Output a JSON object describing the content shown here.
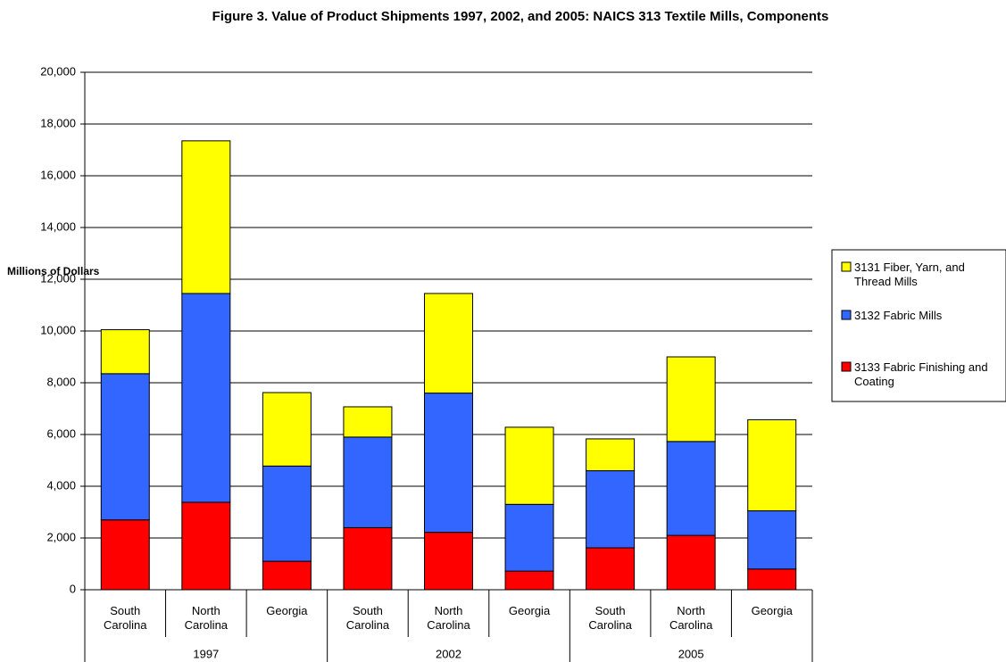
{
  "chart_data": {
    "type": "stacked_bar",
    "title": "Figure 3.   Value of Product Shipments 1997, 2002, and 2005: NAICS 313 Textile Mills, Components",
    "y_label": "Millions of Dollars",
    "categories": [
      "South Carolina",
      "North Carolina",
      "Georgia",
      "South Carolina",
      "North Carolina",
      "Georgia",
      "South Carolina",
      "North Carolina",
      "Georgia"
    ],
    "groups": [
      "1997",
      "2002",
      "2005"
    ],
    "series": [
      {
        "name": "3133 Fabric Finishing and Coating",
        "color": "#ff0000",
        "values": [
          2700,
          3380,
          1100,
          2400,
          2220,
          720,
          1620,
          2100,
          800
        ]
      },
      {
        "name": "3132 Fabric Mills",
        "color": "#3366ff",
        "values": [
          5650,
          8070,
          3680,
          3500,
          5380,
          2580,
          2980,
          3630,
          2250
        ]
      },
      {
        "name": "3131 Fiber, Yarn, and Thread Mills",
        "color": "#ffff00",
        "values": [
          1700,
          5900,
          2840,
          1170,
          3850,
          2980,
          1230,
          3270,
          3520
        ]
      }
    ],
    "ylim": [
      0,
      20000
    ],
    "yticks": [
      0,
      {
        "value": 2000,
        "label": "2,000"
      },
      {
        "value": 4000,
        "label": "4,000"
      },
      {
        "value": 6000,
        "label": "6,000"
      },
      {
        "value": 8000,
        "label": "8,000"
      },
      {
        "value": 10000,
        "label": "10,000"
      },
      {
        "value": 12000,
        "label": "12,000"
      },
      {
        "value": 14000,
        "label": "14,000"
      },
      {
        "value": 16000,
        "label": "16,000"
      },
      {
        "value": 18000,
        "label": "18,000"
      },
      {
        "value": 20000,
        "label": "20,000"
      }
    ],
    "grid": true,
    "legend": "right"
  }
}
